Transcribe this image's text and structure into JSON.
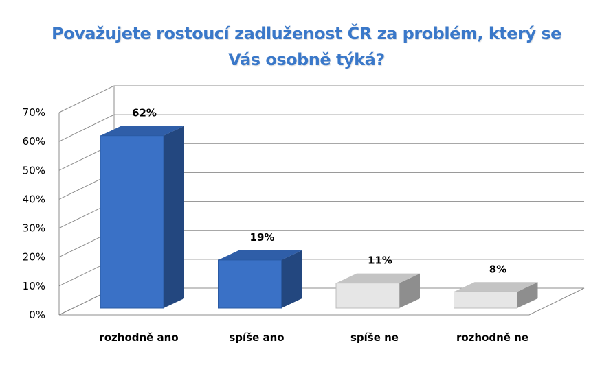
{
  "chart_data": {
    "type": "bar",
    "title_lines": [
      "Považujete rostoucí zadluženost ČR za problém, který se",
      "Vás osobně týká?"
    ],
    "categories": [
      "rozhodně ano",
      "spíše ano",
      "spíše ne",
      "rozhodně ne"
    ],
    "values": [
      62,
      19,
      11,
      8
    ],
    "data_labels": [
      "62%",
      "19%",
      "11%",
      "8%"
    ],
    "ylim": [
      0,
      70
    ],
    "yticks": [
      0,
      10,
      20,
      30,
      40,
      50,
      60,
      70
    ],
    "ytick_labels": [
      "0%",
      "10%",
      "20%",
      "30%",
      "40%",
      "50%",
      "60%",
      "70%"
    ],
    "grid": true,
    "style": "3d",
    "colors": {
      "title": "#3a78c9",
      "positive_front": "#3a71c6",
      "positive_side": "#23477f",
      "positive_top": "#2f5ea8",
      "negative_front": "#e6e6e6",
      "negative_side": "#8e8e8e",
      "negative_top": "#c4c4c4",
      "grid": "#8c8c8c"
    },
    "bar_color_groups": [
      "positive",
      "positive",
      "negative",
      "negative"
    ]
  }
}
